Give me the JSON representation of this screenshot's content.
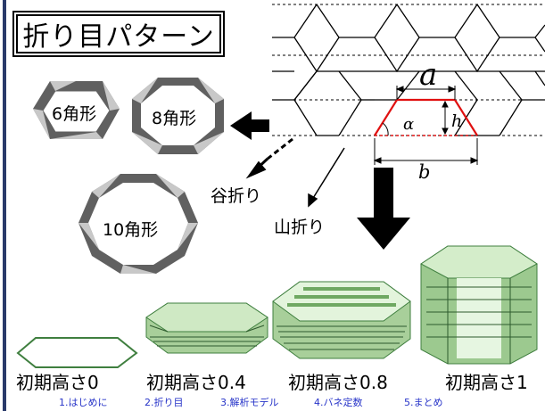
{
  "title": "折り目パターン",
  "crease": {
    "var_a": "a",
    "var_b": "b",
    "var_h": "h",
    "var_alpha": "α",
    "valley_fold": "谷折り",
    "mountain_fold": "山折り"
  },
  "polygons": [
    {
      "label": "6角形",
      "sides": 6
    },
    {
      "label": "8角形",
      "sides": 8
    },
    {
      "label": "10角形",
      "sides": 10
    }
  ],
  "stages": [
    {
      "label": "初期高さ0"
    },
    {
      "label": "初期高さ0.4"
    },
    {
      "label": "初期高さ0.8"
    },
    {
      "label": "初期高さ1"
    }
  ],
  "nav": [
    {
      "label": "1.はじめに"
    },
    {
      "label": "2.折り目"
    },
    {
      "label": "3.解析モデル"
    },
    {
      "label": "4.バネ定数"
    },
    {
      "label": "5.まとめ"
    }
  ],
  "colors": {
    "accent_red": "#e01010",
    "green": "#3f7f3f",
    "pale_green": "#cfe9c4",
    "nav_blue": "#2633c8"
  }
}
